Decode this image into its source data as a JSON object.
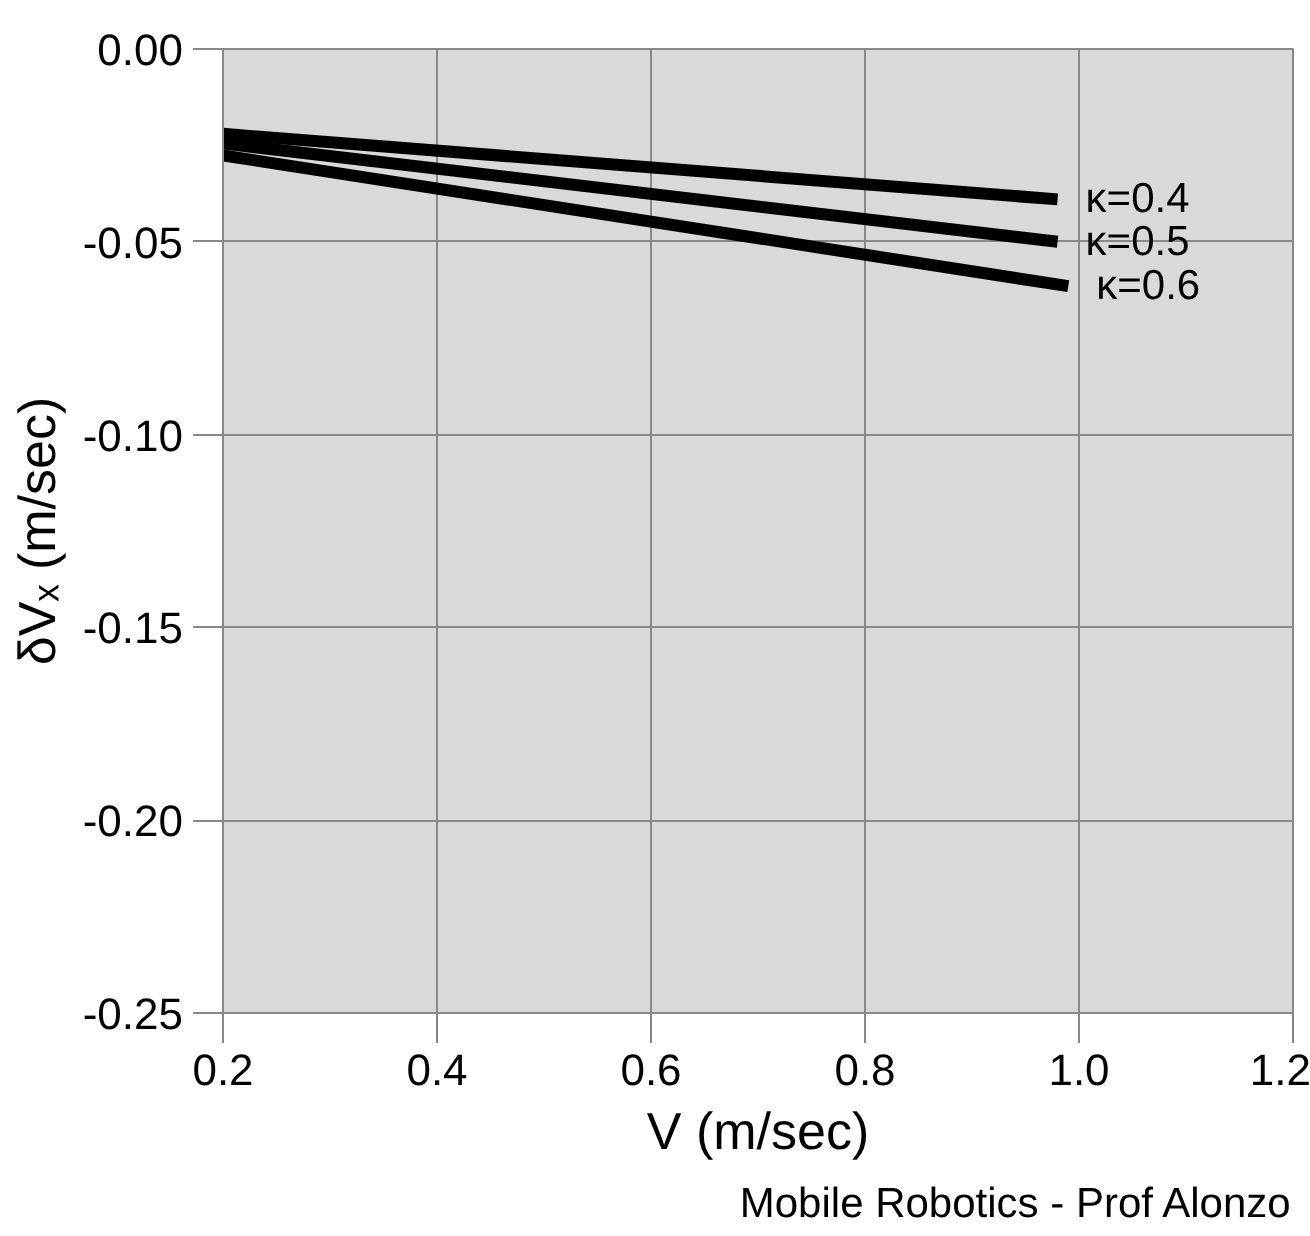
{
  "chart_data": {
    "type": "line",
    "xlabel": "V (m/sec)",
    "ylabel": "δVₓ (m/sec)",
    "annotations": [
      "Mobile Robotics - Prof Alonzo"
    ],
    "xlim": [
      0.2,
      1.2
    ],
    "xticks": [
      {
        "value": 0.2,
        "label": "0.2"
      },
      {
        "value": 0.4,
        "label": "0.4"
      },
      {
        "value": 0.6,
        "label": "0.6"
      },
      {
        "value": 0.8,
        "label": "0.8"
      },
      {
        "value": 1.0,
        "label": "1.0"
      },
      {
        "value": 1.2,
        "label": "1.2"
      }
    ],
    "ylim": [
      -0.25,
      0
    ],
    "yticks": [
      {
        "value": 0,
        "label": "0.00"
      },
      {
        "value": -0.05,
        "label": "-0.05"
      },
      {
        "value": -0.1,
        "label": "-0.10"
      },
      {
        "value": -0.15,
        "label": "-0.15"
      },
      {
        "value": -0.2,
        "label": "-0.20"
      },
      {
        "value": -0.25,
        "label": "-0.25"
      }
    ],
    "grid": true,
    "legend": false,
    "series": [
      {
        "name": "κ=0.4",
        "color": "#000000",
        "x": [
          0.2,
          0.98
        ],
        "values": [
          -0.022,
          -0.039
        ]
      },
      {
        "name": "κ=0.5",
        "color": "#000000",
        "x": [
          0.2,
          0.98
        ],
        "values": [
          -0.0245,
          -0.05
        ]
      },
      {
        "name": "κ=0.6",
        "color": "#000000",
        "x": [
          0.2,
          0.99
        ],
        "values": [
          -0.0276,
          -0.0615
        ]
      }
    ]
  }
}
